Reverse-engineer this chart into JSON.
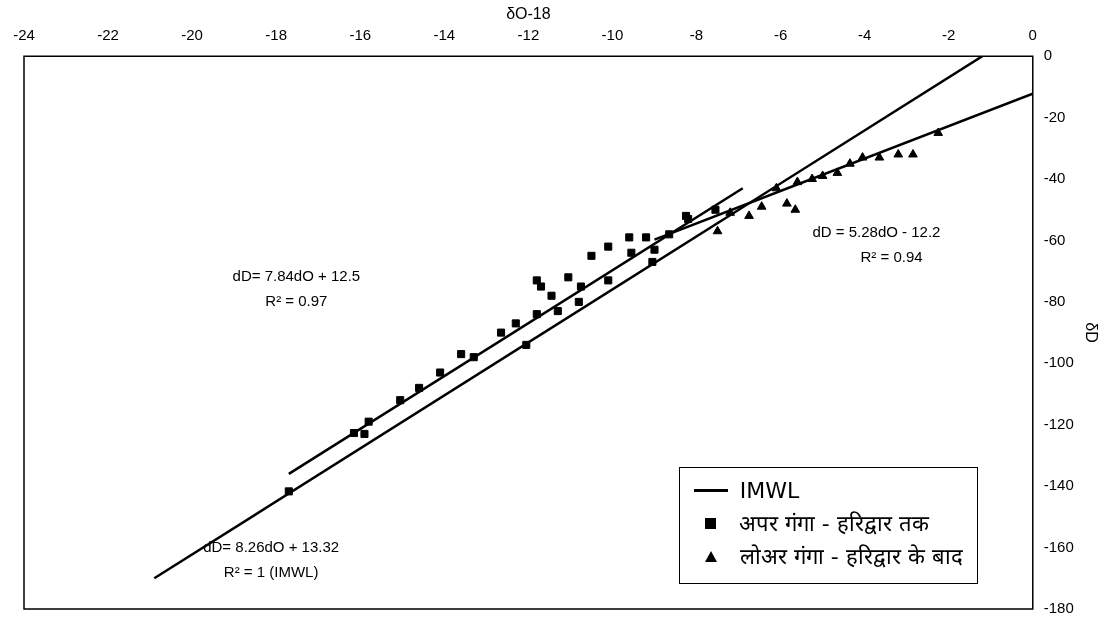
{
  "chart_data": {
    "type": "scatter",
    "xlabel": "δO-18",
    "ylabel": "δD",
    "xlim": [
      -24,
      0
    ],
    "xticks": [
      -24,
      -22,
      -20,
      -18,
      -16,
      -14,
      -12,
      -10,
      -8,
      -6,
      -4,
      -2,
      0
    ],
    "ylim": [
      -180,
      0
    ],
    "yticks": [
      -180,
      -160,
      -140,
      -120,
      -100,
      -80,
      -60,
      -40,
      -20,
      0
    ],
    "grid": false,
    "legend": "bottom right",
    "series": [
      {
        "name": "IMWL",
        "type": "line",
        "color": "#000000",
        "marker": "none",
        "x": [
          -20.9,
          -1.2
        ],
        "values": [
          -170,
          0
        ]
      },
      {
        "type": "line",
        "color": "#000000",
        "marker": "none",
        "x": [
          -17.7,
          -6.9
        ],
        "values": [
          -136,
          -43
        ]
      },
      {
        "type": "line",
        "color": "#000000",
        "marker": "none",
        "x": [
          -9,
          0
        ],
        "values": [
          -59.7,
          -12.2
        ]
      },
      {
        "name": "अपर  गंगा -  हरिद्वार तक",
        "color": "#000000",
        "marker": "square",
        "x": [
          -17.7,
          -16.15,
          -15.8,
          -15.9,
          -15.05,
          -14.6,
          -14.1,
          -13.6,
          -13.3,
          -12.65,
          -12.3,
          -11.8,
          -12.05,
          -11.7,
          -11.8,
          -11.45,
          -11.05,
          -10.75,
          -10.5,
          -10.1,
          -9.6,
          -9.2,
          -8.65,
          -8.25,
          -11.3,
          -10.8,
          -10.1,
          -9.55,
          -9.05,
          -9.0,
          -8.2,
          -7.55
        ],
        "values": [
          -141.7,
          -122.7,
          -119,
          -123,
          -112,
          -108,
          -103,
          -97,
          -98,
          -90,
          -87,
          -84,
          -94,
          -75,
          -73,
          -78,
          -72,
          -75,
          -65,
          -62,
          -59,
          -59,
          -58,
          -52,
          -83,
          -80,
          -73,
          -64,
          -67,
          -63,
          -53,
          -50
        ]
      },
      {
        "name": "लोअर  गंगा -  हरिद्वार के बाद",
        "color": "#000000",
        "marker": "triangle",
        "x": [
          -7.5,
          -7.2,
          -6.75,
          -6.45,
          -6.1,
          -5.85,
          -5.65,
          -5.6,
          -5.25,
          -5.0,
          -4.65,
          -4.35,
          -4.05,
          -3.65,
          -3.2,
          -2.85,
          -2.25
        ],
        "values": [
          -57,
          -51,
          -52,
          -49,
          -43,
          -48,
          -50,
          -41,
          -40,
          -39,
          -38,
          -35,
          -33,
          -33,
          -32,
          -32,
          -25
        ]
      }
    ],
    "annotations": [
      "dD= 7.84dO + 12.5",
      "R² = 0.97",
      "dD= 8.26dO + 13.32",
      "R² = 1 (IMWL)",
      "dD = 5.28dO - 12.2",
      "R² = 0.94"
    ]
  }
}
